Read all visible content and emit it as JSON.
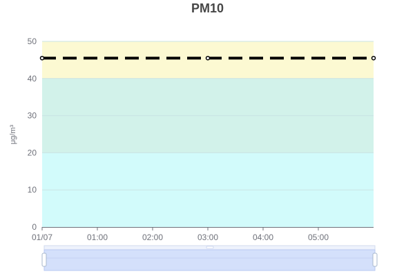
{
  "chart_data": {
    "type": "line",
    "title": "PM10",
    "ylabel": "μg/m³",
    "xlabel": "",
    "ylim": [
      0,
      50
    ],
    "yticks": [
      0,
      10,
      20,
      30,
      40,
      50
    ],
    "x_categories": [
      "01/07",
      "01:00",
      "02:00",
      "03:00",
      "04:00",
      "05:00"
    ],
    "x_range_hours": [
      0,
      6
    ],
    "bands": [
      {
        "from": 0,
        "to": 20,
        "color": "#d2fbfb"
      },
      {
        "from": 20,
        "to": 40,
        "color": "#d2f2ea"
      },
      {
        "from": 40,
        "to": 50,
        "color": "#fcf9d2"
      }
    ],
    "series": [
      {
        "x_hours": [
          0,
          3,
          6
        ],
        "values": [
          45.5,
          45.5,
          45.5
        ],
        "color": "#000000",
        "line_style": "dashed"
      }
    ],
    "grid": true,
    "data_zoom": {
      "start": 0,
      "end": 1
    }
  }
}
